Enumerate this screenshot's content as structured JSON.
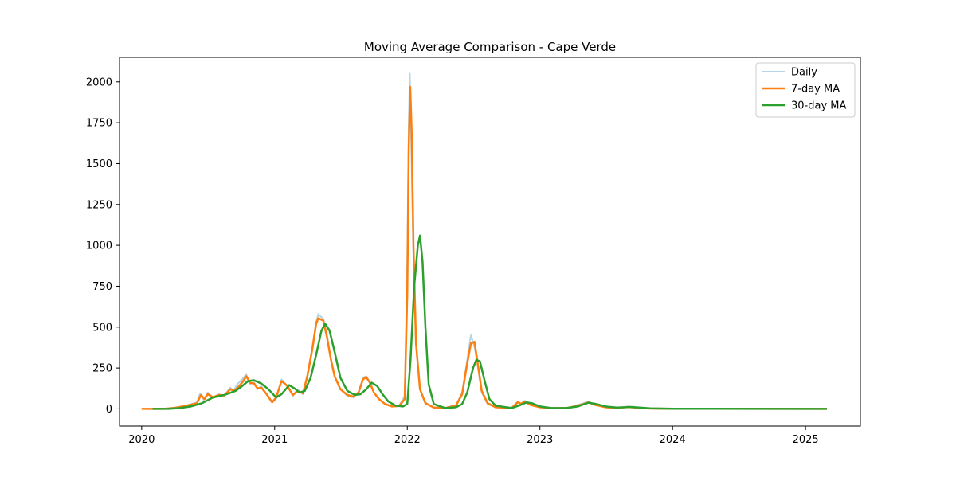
{
  "chart_data": {
    "type": "line",
    "title": "Moving Average Comparison - Cape Verde",
    "xlabel": "",
    "ylabel": "",
    "x_ticks": [
      "2020",
      "2021",
      "2022",
      "2023",
      "2024",
      "2025"
    ],
    "y_ticks": [
      "0",
      "250",
      "500",
      "750",
      "1000",
      "1250",
      "1500",
      "1750",
      "2000"
    ],
    "xlim": [
      "2019-11-01",
      "2025-06-01"
    ],
    "ylim": [
      -105,
      2150
    ],
    "grid": false,
    "legend_position": "top-right",
    "series": [
      {
        "name": "Daily",
        "color": "#a6cee3",
        "points": [
          [
            "2020-01-01",
            0
          ],
          [
            "2020-03-01",
            0
          ],
          [
            "2020-04-01",
            8
          ],
          [
            "2020-05-01",
            20
          ],
          [
            "2020-06-01",
            40
          ],
          [
            "2020-06-10",
            95
          ],
          [
            "2020-06-20",
            55
          ],
          [
            "2020-07-01",
            100
          ],
          [
            "2020-07-15",
            70
          ],
          [
            "2020-08-01",
            90
          ],
          [
            "2020-08-15",
            80
          ],
          [
            "2020-09-01",
            130
          ],
          [
            "2020-09-10",
            110
          ],
          [
            "2020-09-20",
            150
          ],
          [
            "2020-10-01",
            175
          ],
          [
            "2020-10-15",
            210
          ],
          [
            "2020-10-25",
            150
          ],
          [
            "2020-11-05",
            165
          ],
          [
            "2020-11-15",
            120
          ],
          [
            "2020-11-25",
            140
          ],
          [
            "2020-12-10",
            90
          ],
          [
            "2020-12-25",
            40
          ],
          [
            "2021-01-05",
            60
          ],
          [
            "2021-01-20",
            180
          ],
          [
            "2021-02-05",
            140
          ],
          [
            "2021-02-20",
            80
          ],
          [
            "2021-03-05",
            120
          ],
          [
            "2021-03-20",
            90
          ],
          [
            "2021-04-01",
            210
          ],
          [
            "2021-04-15",
            380
          ],
          [
            "2021-04-25",
            530
          ],
          [
            "2021-05-01",
            580
          ],
          [
            "2021-05-15",
            550
          ],
          [
            "2021-05-25",
            450
          ],
          [
            "2021-06-05",
            300
          ],
          [
            "2021-06-15",
            200
          ],
          [
            "2021-07-01",
            120
          ],
          [
            "2021-07-20",
            80
          ],
          [
            "2021-08-05",
            70
          ],
          [
            "2021-08-20",
            100
          ],
          [
            "2021-09-01",
            190
          ],
          [
            "2021-09-10",
            200
          ],
          [
            "2021-09-20",
            160
          ],
          [
            "2021-10-01",
            100
          ],
          [
            "2021-10-15",
            60
          ],
          [
            "2021-11-01",
            30
          ],
          [
            "2021-11-20",
            15
          ],
          [
            "2021-12-10",
            20
          ],
          [
            "2021-12-25",
            80
          ],
          [
            "2022-01-01",
            900
          ],
          [
            "2022-01-05",
            1750
          ],
          [
            "2022-01-08",
            2050
          ],
          [
            "2022-01-12",
            1600
          ],
          [
            "2022-01-18",
            900
          ],
          [
            "2022-01-25",
            400
          ],
          [
            "2022-02-05",
            120
          ],
          [
            "2022-02-20",
            40
          ],
          [
            "2022-03-15",
            8
          ],
          [
            "2022-04-15",
            5
          ],
          [
            "2022-05-15",
            25
          ],
          [
            "2022-06-01",
            100
          ],
          [
            "2022-06-15",
            300
          ],
          [
            "2022-06-25",
            450
          ],
          [
            "2022-07-05",
            380
          ],
          [
            "2022-07-15",
            250
          ],
          [
            "2022-07-25",
            100
          ],
          [
            "2022-08-10",
            30
          ],
          [
            "2022-09-01",
            10
          ],
          [
            "2022-10-15",
            5
          ],
          [
            "2022-11-01",
            45
          ],
          [
            "2022-11-10",
            30
          ],
          [
            "2022-11-20",
            50
          ],
          [
            "2022-12-05",
            25
          ],
          [
            "2023-01-01",
            10
          ],
          [
            "2023-02-01",
            5
          ],
          [
            "2023-03-15",
            5
          ],
          [
            "2023-04-01",
            15
          ],
          [
            "2023-05-01",
            35
          ],
          [
            "2023-05-15",
            45
          ],
          [
            "2023-06-01",
            25
          ],
          [
            "2023-07-01",
            10
          ],
          [
            "2023-08-01",
            5
          ],
          [
            "2023-09-01",
            15
          ],
          [
            "2023-10-01",
            5
          ],
          [
            "2023-11-01",
            2
          ],
          [
            "2024-01-01",
            1
          ],
          [
            "2025-03-01",
            0
          ]
        ]
      },
      {
        "name": "7-day MA",
        "color": "#ff7f0e",
        "points": [
          [
            "2020-01-01",
            0
          ],
          [
            "2020-03-01",
            0
          ],
          [
            "2020-04-01",
            6
          ],
          [
            "2020-05-01",
            18
          ],
          [
            "2020-06-01",
            35
          ],
          [
            "2020-06-12",
            85
          ],
          [
            "2020-06-22",
            60
          ],
          [
            "2020-07-01",
            90
          ],
          [
            "2020-07-15",
            72
          ],
          [
            "2020-08-01",
            85
          ],
          [
            "2020-08-15",
            82
          ],
          [
            "2020-09-01",
            120
          ],
          [
            "2020-09-12",
            110
          ],
          [
            "2020-09-25",
            140
          ],
          [
            "2020-10-05",
            165
          ],
          [
            "2020-10-15",
            200
          ],
          [
            "2020-10-25",
            160
          ],
          [
            "2020-11-05",
            155
          ],
          [
            "2020-11-15",
            125
          ],
          [
            "2020-11-25",
            130
          ],
          [
            "2020-12-10",
            90
          ],
          [
            "2020-12-25",
            40
          ],
          [
            "2021-01-05",
            70
          ],
          [
            "2021-01-20",
            170
          ],
          [
            "2021-02-05",
            140
          ],
          [
            "2021-02-20",
            85
          ],
          [
            "2021-03-05",
            110
          ],
          [
            "2021-03-20",
            95
          ],
          [
            "2021-04-01",
            200
          ],
          [
            "2021-04-15",
            370
          ],
          [
            "2021-04-25",
            520
          ],
          [
            "2021-05-01",
            555
          ],
          [
            "2021-05-15",
            540
          ],
          [
            "2021-05-25",
            440
          ],
          [
            "2021-06-05",
            300
          ],
          [
            "2021-06-15",
            200
          ],
          [
            "2021-07-01",
            120
          ],
          [
            "2021-07-20",
            85
          ],
          [
            "2021-08-05",
            75
          ],
          [
            "2021-08-20",
            100
          ],
          [
            "2021-09-01",
            180
          ],
          [
            "2021-09-10",
            195
          ],
          [
            "2021-09-20",
            160
          ],
          [
            "2021-10-01",
            100
          ],
          [
            "2021-10-15",
            60
          ],
          [
            "2021-11-01",
            30
          ],
          [
            "2021-11-20",
            15
          ],
          [
            "2021-12-10",
            18
          ],
          [
            "2021-12-25",
            60
          ],
          [
            "2022-01-01",
            700
          ],
          [
            "2022-01-05",
            1600
          ],
          [
            "2022-01-09",
            1970
          ],
          [
            "2022-01-13",
            1700
          ],
          [
            "2022-01-18",
            1000
          ],
          [
            "2022-01-25",
            400
          ],
          [
            "2022-02-05",
            120
          ],
          [
            "2022-02-20",
            35
          ],
          [
            "2022-03-15",
            8
          ],
          [
            "2022-04-15",
            5
          ],
          [
            "2022-05-15",
            20
          ],
          [
            "2022-06-01",
            90
          ],
          [
            "2022-06-15",
            280
          ],
          [
            "2022-06-25",
            400
          ],
          [
            "2022-07-05",
            410
          ],
          [
            "2022-07-15",
            260
          ],
          [
            "2022-07-25",
            110
          ],
          [
            "2022-08-10",
            35
          ],
          [
            "2022-09-01",
            10
          ],
          [
            "2022-10-15",
            5
          ],
          [
            "2022-11-01",
            40
          ],
          [
            "2022-11-10",
            32
          ],
          [
            "2022-11-20",
            45
          ],
          [
            "2022-12-05",
            25
          ],
          [
            "2023-01-01",
            10
          ],
          [
            "2023-02-01",
            5
          ],
          [
            "2023-03-15",
            5
          ],
          [
            "2023-04-01",
            12
          ],
          [
            "2023-05-01",
            30
          ],
          [
            "2023-05-15",
            40
          ],
          [
            "2023-06-01",
            25
          ],
          [
            "2023-07-01",
            10
          ],
          [
            "2023-08-01",
            5
          ],
          [
            "2023-09-01",
            12
          ],
          [
            "2023-10-01",
            5
          ],
          [
            "2023-11-01",
            2
          ],
          [
            "2024-01-01",
            1
          ],
          [
            "2025-03-01",
            0
          ]
        ]
      },
      {
        "name": "30-day MA",
        "color": "#2ca02c",
        "points": [
          [
            "2020-01-31",
            0
          ],
          [
            "2020-03-15",
            0
          ],
          [
            "2020-04-15",
            5
          ],
          [
            "2020-05-15",
            15
          ],
          [
            "2020-06-15",
            35
          ],
          [
            "2020-07-15",
            70
          ],
          [
            "2020-08-15",
            85
          ],
          [
            "2020-09-15",
            110
          ],
          [
            "2020-10-01",
            135
          ],
          [
            "2020-10-20",
            170
          ],
          [
            "2020-11-05",
            175
          ],
          [
            "2020-11-25",
            155
          ],
          [
            "2020-12-15",
            120
          ],
          [
            "2021-01-05",
            70
          ],
          [
            "2021-01-20",
            90
          ],
          [
            "2021-02-10",
            145
          ],
          [
            "2021-02-25",
            125
          ],
          [
            "2021-03-10",
            100
          ],
          [
            "2021-03-25",
            110
          ],
          [
            "2021-04-10",
            190
          ],
          [
            "2021-04-25",
            330
          ],
          [
            "2021-05-10",
            480
          ],
          [
            "2021-05-20",
            520
          ],
          [
            "2021-06-01",
            480
          ],
          [
            "2021-06-15",
            350
          ],
          [
            "2021-07-01",
            190
          ],
          [
            "2021-07-20",
            110
          ],
          [
            "2021-08-10",
            85
          ],
          [
            "2021-08-25",
            90
          ],
          [
            "2021-09-10",
            120
          ],
          [
            "2021-09-25",
            160
          ],
          [
            "2021-10-10",
            140
          ],
          [
            "2021-10-25",
            90
          ],
          [
            "2021-11-10",
            45
          ],
          [
            "2021-11-30",
            20
          ],
          [
            "2021-12-20",
            15
          ],
          [
            "2022-01-01",
            30
          ],
          [
            "2022-01-10",
            300
          ],
          [
            "2022-01-20",
            750
          ],
          [
            "2022-01-30",
            1000
          ],
          [
            "2022-02-05",
            1060
          ],
          [
            "2022-02-12",
            900
          ],
          [
            "2022-02-20",
            500
          ],
          [
            "2022-03-01",
            150
          ],
          [
            "2022-03-15",
            30
          ],
          [
            "2022-04-15",
            5
          ],
          [
            "2022-05-15",
            10
          ],
          [
            "2022-06-01",
            30
          ],
          [
            "2022-06-15",
            100
          ],
          [
            "2022-07-01",
            250
          ],
          [
            "2022-07-10",
            300
          ],
          [
            "2022-07-20",
            290
          ],
          [
            "2022-08-01",
            180
          ],
          [
            "2022-08-15",
            60
          ],
          [
            "2022-09-01",
            20
          ],
          [
            "2022-10-15",
            5
          ],
          [
            "2022-11-10",
            25
          ],
          [
            "2022-11-25",
            40
          ],
          [
            "2022-12-10",
            35
          ],
          [
            "2023-01-01",
            15
          ],
          [
            "2023-02-01",
            5
          ],
          [
            "2023-03-15",
            5
          ],
          [
            "2023-04-15",
            15
          ],
          [
            "2023-05-15",
            38
          ],
          [
            "2023-06-05",
            30
          ],
          [
            "2023-07-01",
            15
          ],
          [
            "2023-08-01",
            8
          ],
          [
            "2023-09-10",
            12
          ],
          [
            "2023-10-01",
            8
          ],
          [
            "2023-11-01",
            3
          ],
          [
            "2024-01-01",
            1
          ],
          [
            "2025-03-01",
            0
          ]
        ]
      }
    ]
  }
}
